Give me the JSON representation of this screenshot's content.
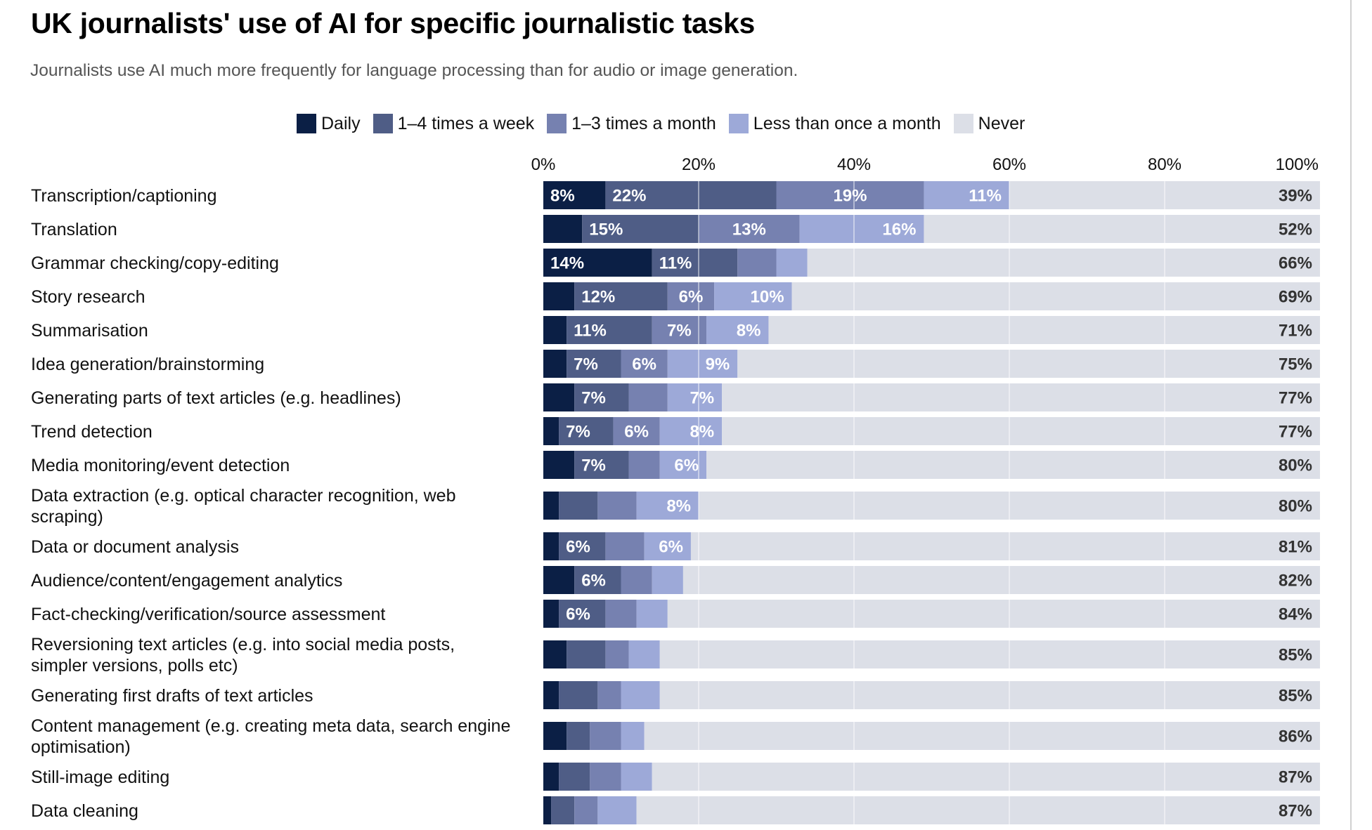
{
  "header": {
    "title": "UK journalists' use of AI for specific journalistic tasks",
    "subtitle": "Journalists use AI much more frequently for language processing than for audio or image generation."
  },
  "legend": [
    {
      "label": "Daily",
      "color": "#0b1f45"
    },
    {
      "label": "1–4 times a week",
      "color": "#4f5d86"
    },
    {
      "label": "1–3 times a month",
      "color": "#7681b0"
    },
    {
      "label": "Less than once a month",
      "color": "#9da9d8"
    },
    {
      "label": "Never",
      "color": "#dcdfe7"
    }
  ],
  "chart_data": {
    "type": "bar",
    "orientation": "horizontal",
    "stacked": true,
    "title": "UK journalists' use of AI for specific journalistic tasks",
    "subtitle": "Journalists use AI much more frequently for language processing than for audio or image generation.",
    "xlabel": "",
    "ylabel": "",
    "xlim": [
      0,
      100
    ],
    "x_ticks": [
      "0%",
      "20%",
      "40%",
      "60%",
      "80%",
      "100%"
    ],
    "grid": true,
    "legend_position": "top",
    "categories": [
      [
        "Transcription/captioning"
      ],
      [
        "Translation"
      ],
      [
        "Grammar checking/copy-editing"
      ],
      [
        "Story research"
      ],
      [
        "Summarisation"
      ],
      [
        "Idea generation/brainstorming"
      ],
      [
        "Generating parts of text articles (e.g. headlines)"
      ],
      [
        "Trend detection"
      ],
      [
        "Media monitoring/event detection"
      ],
      [
        "Data extraction (e.g. optical character recognition, web",
        "scraping)"
      ],
      [
        "Data or document analysis"
      ],
      [
        "Audience/content/engagement analytics"
      ],
      [
        "Fact-checking/verification/source assessment"
      ],
      [
        "Reversioning text articles (e.g. into social media posts,",
        "simpler versions, polls etc)"
      ],
      [
        "Generating first drafts of text articles"
      ],
      [
        "Content management (e.g. creating meta data, search engine",
        "optimisation)"
      ],
      [
        "Still-image editing"
      ],
      [
        "Data cleaning"
      ]
    ],
    "series": [
      {
        "name": "Daily",
        "color": "#0b1f45",
        "values": [
          8,
          5,
          14,
          4,
          3,
          3,
          4,
          2,
          4,
          2,
          2,
          4,
          2,
          3,
          2,
          3,
          2,
          1
        ],
        "labeled": [
          true,
          false,
          true,
          false,
          false,
          false,
          false,
          false,
          false,
          false,
          false,
          false,
          false,
          false,
          false,
          false,
          false,
          false
        ]
      },
      {
        "name": "1–4 times a week",
        "color": "#4f5d86",
        "values": [
          22,
          15,
          11,
          12,
          11,
          7,
          7,
          7,
          7,
          5,
          6,
          6,
          6,
          5,
          5,
          3,
          4,
          3
        ],
        "labeled": [
          true,
          true,
          true,
          true,
          true,
          true,
          true,
          true,
          true,
          false,
          true,
          true,
          true,
          false,
          false,
          false,
          false,
          false
        ]
      },
      {
        "name": "1–3 times a month",
        "color": "#7681b0",
        "values": [
          19,
          13,
          5,
          6,
          7,
          6,
          5,
          6,
          4,
          5,
          5,
          4,
          4,
          3,
          3,
          4,
          4,
          3
        ],
        "labeled": [
          true,
          true,
          false,
          true,
          true,
          true,
          false,
          true,
          false,
          false,
          false,
          false,
          false,
          false,
          false,
          false,
          false,
          false
        ]
      },
      {
        "name": "Less than once a month",
        "color": "#9da9d8",
        "values": [
          11,
          16,
          4,
          10,
          8,
          9,
          7,
          8,
          6,
          8,
          6,
          4,
          4,
          4,
          5,
          3,
          4,
          5
        ],
        "labeled": [
          true,
          true,
          false,
          true,
          true,
          true,
          true,
          true,
          true,
          true,
          true,
          false,
          false,
          false,
          false,
          false,
          false,
          false
        ]
      },
      {
        "name": "Never",
        "color": "#dcdfe7",
        "values": [
          39,
          52,
          66,
          69,
          71,
          75,
          77,
          77,
          80,
          80,
          81,
          82,
          84,
          85,
          85,
          86,
          87,
          87
        ],
        "labeled": [
          true,
          true,
          true,
          true,
          true,
          true,
          true,
          true,
          true,
          true,
          true,
          true,
          true,
          true,
          true,
          true,
          true,
          true
        ]
      }
    ]
  }
}
